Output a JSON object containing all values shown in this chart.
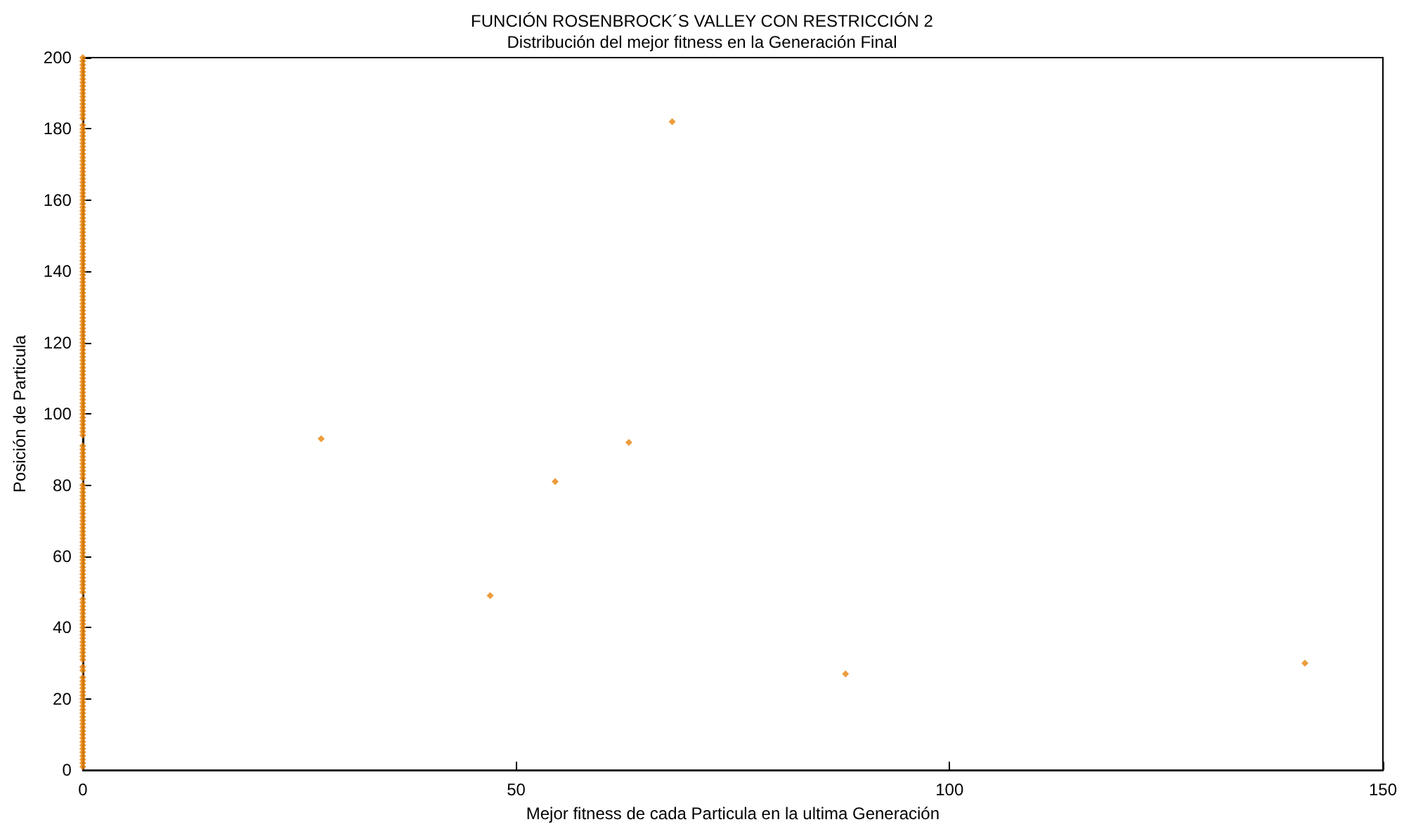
{
  "chart_data": {
    "type": "scatter",
    "title": "FUNCIÓN ROSENBROCK´S VALLEY CON RESTRICCIÓN 2",
    "subtitle": "Distribución del mejor fitness en la Generación Final",
    "xlabel": "Mejor fitness de cada Particula en la ultima Generación",
    "ylabel": "Posición de Particula",
    "xlim": [
      0,
      150
    ],
    "xticks": [
      0,
      50,
      100,
      150
    ],
    "ylim": [
      0,
      200
    ],
    "yticks": [
      0,
      20,
      40,
      60,
      80,
      100,
      120,
      140,
      160,
      180,
      200
    ],
    "grid": false,
    "marker": "diamond",
    "series": [
      {
        "color": "#e8850c",
        "x": [
          0,
          0,
          0,
          0,
          0,
          0,
          0,
          0,
          0,
          0,
          0,
          0,
          0,
          0,
          0,
          0,
          0,
          0,
          0,
          0,
          0,
          0,
          0,
          0,
          0,
          0,
          88,
          0,
          0,
          141,
          0,
          0,
          0,
          0,
          0,
          0,
          0,
          0,
          0,
          0,
          0,
          0,
          0,
          0,
          0,
          0,
          0,
          0,
          47,
          0,
          0,
          0,
          0,
          0,
          0,
          0,
          0,
          0,
          0,
          0,
          0,
          0,
          0,
          0,
          0,
          0,
          0,
          0,
          0,
          0,
          0,
          0,
          0,
          0,
          0,
          0,
          0,
          0,
          0,
          0,
          54.5,
          0,
          0,
          0,
          0,
          0,
          0,
          0,
          0,
          0,
          0,
          63,
          27.5,
          0,
          0,
          0,
          0,
          0,
          0,
          0,
          0,
          0,
          0,
          0,
          0,
          0,
          0,
          0,
          0,
          0,
          0,
          0,
          0,
          0,
          0,
          0,
          0,
          0,
          0,
          0,
          0,
          0,
          0,
          0,
          0,
          0,
          0,
          0,
          0,
          0,
          0,
          0,
          0,
          0,
          0,
          0,
          0,
          0,
          0,
          0,
          0,
          0,
          0,
          0,
          0,
          0,
          0,
          0,
          0,
          0,
          0,
          0,
          0,
          0,
          0,
          0,
          0,
          0,
          0,
          0,
          0,
          0,
          0,
          0,
          0,
          0,
          0,
          0,
          0,
          0,
          0,
          0,
          0,
          0,
          0,
          0,
          0,
          0,
          0,
          0,
          0,
          68,
          0,
          0,
          0,
          0,
          0,
          0,
          0,
          0,
          0,
          0,
          0,
          0,
          0,
          0,
          0,
          0,
          0,
          0
        ],
        "values": [
          1,
          2,
          3,
          4,
          5,
          6,
          7,
          8,
          9,
          10,
          11,
          12,
          13,
          14,
          15,
          16,
          17,
          18,
          19,
          20,
          21,
          22,
          23,
          24,
          25,
          26,
          27,
          28,
          29,
          30,
          31,
          32,
          33,
          34,
          35,
          36,
          37,
          38,
          39,
          40,
          41,
          42,
          43,
          44,
          45,
          46,
          47,
          48,
          49,
          50,
          51,
          52,
          53,
          54,
          55,
          56,
          57,
          58,
          59,
          60,
          61,
          62,
          63,
          64,
          65,
          66,
          67,
          68,
          69,
          70,
          71,
          72,
          73,
          74,
          75,
          76,
          77,
          78,
          79,
          80,
          81,
          82,
          83,
          84,
          85,
          86,
          87,
          88,
          89,
          90,
          91,
          92,
          93,
          94,
          95,
          96,
          97,
          98,
          99,
          100,
          101,
          102,
          103,
          104,
          105,
          106,
          107,
          108,
          109,
          110,
          111,
          112,
          113,
          114,
          115,
          116,
          117,
          118,
          119,
          120,
          121,
          122,
          123,
          124,
          125,
          126,
          127,
          128,
          129,
          130,
          131,
          132,
          133,
          134,
          135,
          136,
          137,
          138,
          139,
          140,
          141,
          142,
          143,
          144,
          145,
          146,
          147,
          148,
          149,
          150,
          151,
          152,
          153,
          154,
          155,
          156,
          157,
          158,
          159,
          160,
          161,
          162,
          163,
          164,
          165,
          166,
          167,
          168,
          169,
          170,
          171,
          172,
          173,
          174,
          175,
          176,
          177,
          178,
          179,
          180,
          181,
          182,
          183,
          184,
          185,
          186,
          187,
          188,
          189,
          190,
          191,
          192,
          193,
          194,
          195,
          196,
          197,
          198,
          199,
          200
        ]
      }
    ]
  }
}
